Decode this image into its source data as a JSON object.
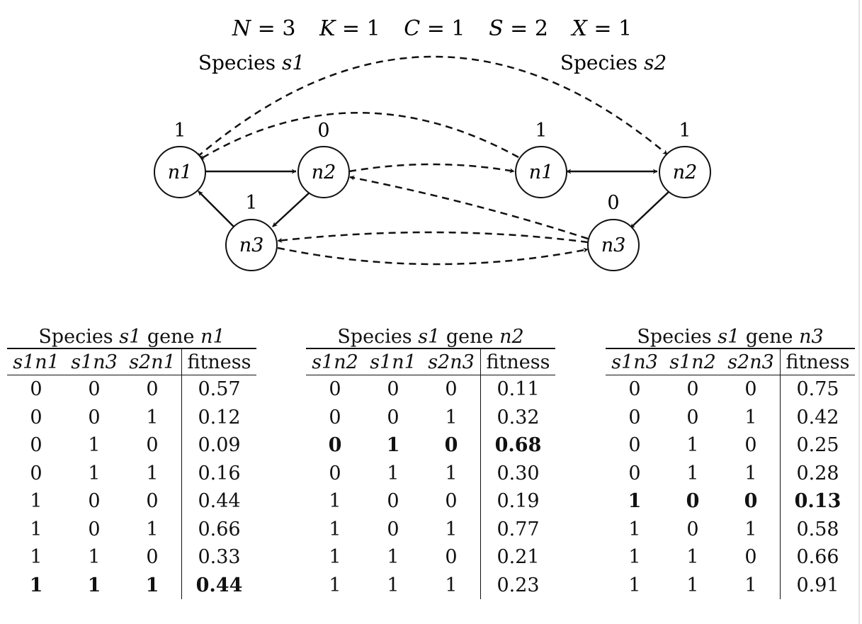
{
  "params": [
    {
      "name": "N",
      "value": "3"
    },
    {
      "name": "K",
      "value": "1"
    },
    {
      "name": "C",
      "value": "1"
    },
    {
      "name": "S",
      "value": "2"
    },
    {
      "name": "X",
      "value": "1"
    }
  ],
  "species": [
    {
      "label_prefix": "Species ",
      "label_var": "s1",
      "nodes": [
        {
          "id": "n1",
          "label": "n1",
          "state": "1"
        },
        {
          "id": "n2",
          "label": "n2",
          "state": "0"
        },
        {
          "id": "n3",
          "label": "n3",
          "state": "1"
        }
      ]
    },
    {
      "label_prefix": "Species ",
      "label_var": "s2",
      "nodes": [
        {
          "id": "n1",
          "label": "n1",
          "state": "1"
        },
        {
          "id": "n2",
          "label": "n2",
          "state": "1"
        },
        {
          "id": "n3",
          "label": "n3",
          "state": "0"
        }
      ]
    }
  ],
  "tables": [
    {
      "title_prefix": "Species ",
      "title_species": "s1",
      "title_mid": " gene ",
      "title_gene": "n1",
      "headers": [
        "s1n1",
        "s1n3",
        "s2n1",
        "fitness"
      ],
      "rows": [
        {
          "cells": [
            "0",
            "0",
            "0",
            "0.57"
          ],
          "bold": false
        },
        {
          "cells": [
            "0",
            "0",
            "1",
            "0.12"
          ],
          "bold": false
        },
        {
          "cells": [
            "0",
            "1",
            "0",
            "0.09"
          ],
          "bold": false
        },
        {
          "cells": [
            "0",
            "1",
            "1",
            "0.16"
          ],
          "bold": false
        },
        {
          "cells": [
            "1",
            "0",
            "0",
            "0.44"
          ],
          "bold": false
        },
        {
          "cells": [
            "1",
            "0",
            "1",
            "0.66"
          ],
          "bold": false
        },
        {
          "cells": [
            "1",
            "1",
            "0",
            "0.33"
          ],
          "bold": false
        },
        {
          "cells": [
            "1",
            "1",
            "1",
            "0.44"
          ],
          "bold": true
        }
      ]
    },
    {
      "title_prefix": "Species ",
      "title_species": "s1",
      "title_mid": " gene ",
      "title_gene": "n2",
      "headers": [
        "s1n2",
        "s1n1",
        "s2n3",
        "fitness"
      ],
      "rows": [
        {
          "cells": [
            "0",
            "0",
            "0",
            "0.11"
          ],
          "bold": false
        },
        {
          "cells": [
            "0",
            "0",
            "1",
            "0.32"
          ],
          "bold": false
        },
        {
          "cells": [
            "0",
            "1",
            "0",
            "0.68"
          ],
          "bold": true
        },
        {
          "cells": [
            "0",
            "1",
            "1",
            "0.30"
          ],
          "bold": false
        },
        {
          "cells": [
            "1",
            "0",
            "0",
            "0.19"
          ],
          "bold": false
        },
        {
          "cells": [
            "1",
            "0",
            "1",
            "0.77"
          ],
          "bold": false
        },
        {
          "cells": [
            "1",
            "1",
            "0",
            "0.21"
          ],
          "bold": false
        },
        {
          "cells": [
            "1",
            "1",
            "1",
            "0.23"
          ],
          "bold": false
        }
      ]
    },
    {
      "title_prefix": "Species ",
      "title_species": "s1",
      "title_mid": " gene ",
      "title_gene": "n3",
      "headers": [
        "s1n3",
        "s1n2",
        "s2n3",
        "fitness"
      ],
      "rows": [
        {
          "cells": [
            "0",
            "0",
            "0",
            "0.75"
          ],
          "bold": false
        },
        {
          "cells": [
            "0",
            "0",
            "1",
            "0.42"
          ],
          "bold": false
        },
        {
          "cells": [
            "0",
            "1",
            "0",
            "0.25"
          ],
          "bold": false
        },
        {
          "cells": [
            "0",
            "1",
            "1",
            "0.28"
          ],
          "bold": false
        },
        {
          "cells": [
            "1",
            "0",
            "0",
            "0.13"
          ],
          "bold": true
        },
        {
          "cells": [
            "1",
            "0",
            "1",
            "0.58"
          ],
          "bold": false
        },
        {
          "cells": [
            "1",
            "1",
            "0",
            "0.66"
          ],
          "bold": false
        },
        {
          "cells": [
            "1",
            "1",
            "1",
            "0.91"
          ],
          "bold": false
        }
      ]
    }
  ]
}
